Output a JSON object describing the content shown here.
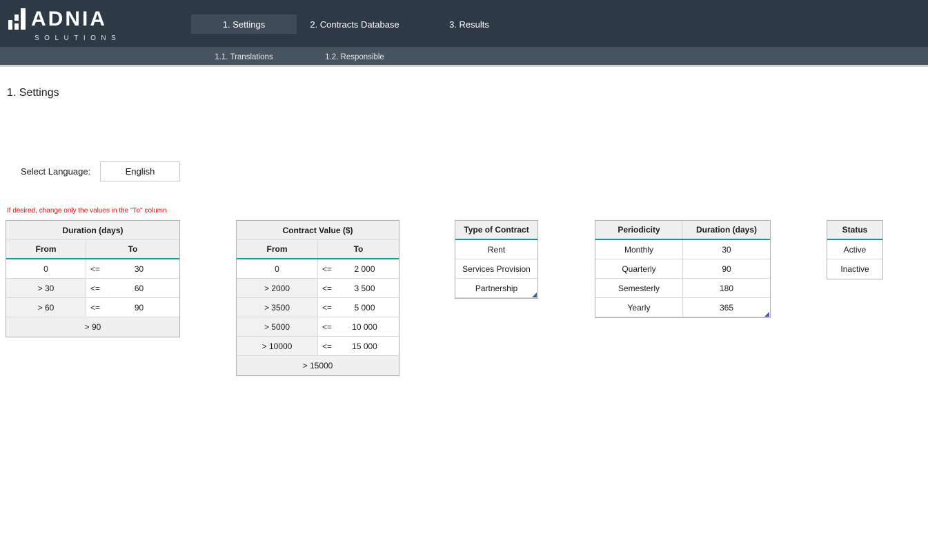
{
  "brand": {
    "name": "ADNIA",
    "subtitle": "SOLUTIONS"
  },
  "nav": {
    "tabs": [
      {
        "label": "1. Settings",
        "active": true
      },
      {
        "label": "2. Contracts Database",
        "active": false
      },
      {
        "label": "3. Results",
        "active": false
      }
    ],
    "subtabs": [
      {
        "label": "1.1. Translations"
      },
      {
        "label": "1.2. Responsible"
      }
    ]
  },
  "page": {
    "title": "1. Settings",
    "language_label": "Select Language:",
    "language_value": "English",
    "note": "If desired, change only the values in the \"To\" column"
  },
  "colors": {
    "header_bg": "#2d3944",
    "subnav_bg": "#47535f",
    "active_tab_bg": "#3f4b58",
    "accent_teal": "#00a29b",
    "note_red": "#ff0000",
    "table_header_bg": "#f0f0f0",
    "table_shade_bg": "#f2f2f2"
  },
  "tables": {
    "duration": {
      "title": "Duration (days)",
      "col_from": "From",
      "col_to": "To",
      "rows": [
        {
          "from": "0",
          "op": "<=",
          "to": "30"
        },
        {
          "from": "> 30",
          "op": "<=",
          "to": "60"
        },
        {
          "from": "> 60",
          "op": "<=",
          "to": "90"
        }
      ],
      "footer": "> 90"
    },
    "contract_value": {
      "title": "Contract Value ($)",
      "col_from": "From",
      "col_to": "To",
      "rows": [
        {
          "from": "0",
          "op": "<=",
          "to": "2 000"
        },
        {
          "from": "> 2000",
          "op": "<=",
          "to": "3 500"
        },
        {
          "from": "> 3500",
          "op": "<=",
          "to": "5 000"
        },
        {
          "from": "> 5000",
          "op": "<=",
          "to": "10 000"
        },
        {
          "from": "> 10000",
          "op": "<=",
          "to": "15 000"
        }
      ],
      "footer": "> 15000"
    },
    "type_of_contract": {
      "title": "Type of Contract",
      "rows": [
        "Rent",
        "Services Provision",
        "Partnership"
      ]
    },
    "periodicity": {
      "title": "Periodicity",
      "col2": "Duration (days)",
      "rows": [
        {
          "name": "Monthly",
          "days": "30"
        },
        {
          "name": "Quarterly",
          "days": "90"
        },
        {
          "name": "Semesterly",
          "days": "180"
        },
        {
          "name": "Yearly",
          "days": "365"
        }
      ]
    },
    "status": {
      "title": "Status",
      "rows": [
        "Active",
        "Inactive"
      ]
    }
  }
}
